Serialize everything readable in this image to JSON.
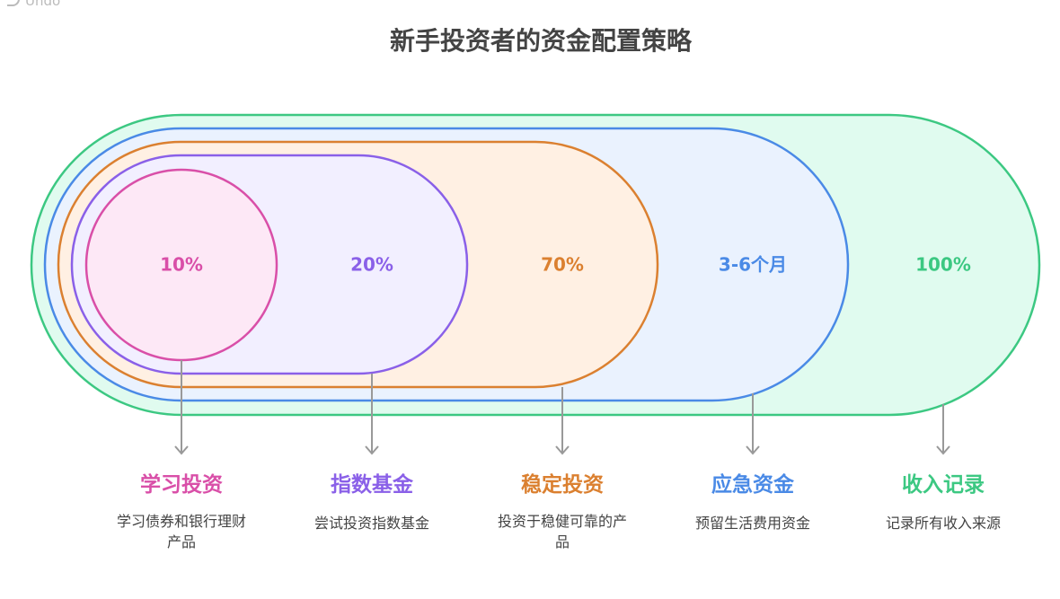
{
  "undo_label": "Undo",
  "title": "新手投资者的资金配置策略",
  "colors": {
    "pink": "#d94fa8",
    "purple": "#8a60e8",
    "orange": "#db8030",
    "blue": "#4a8ae6",
    "green": "#3cc882"
  },
  "layers": [
    {
      "value": "10%",
      "title": "学习投资",
      "desc_lines": [
        "学习债券和银行理财",
        "产品"
      ]
    },
    {
      "value": "20%",
      "title": "指数基金",
      "desc_lines": [
        "尝试投资指数基金"
      ]
    },
    {
      "value": "70%",
      "title": "稳定投资",
      "desc_lines": [
        "投资于稳健可靠的产",
        "品"
      ]
    },
    {
      "value": "3-6个月",
      "title": "应急资金",
      "desc_lines": [
        "预留生活费用资金"
      ]
    },
    {
      "value": "100%",
      "title": "收入记录",
      "desc_lines": [
        "记录所有收入来源"
      ]
    }
  ]
}
